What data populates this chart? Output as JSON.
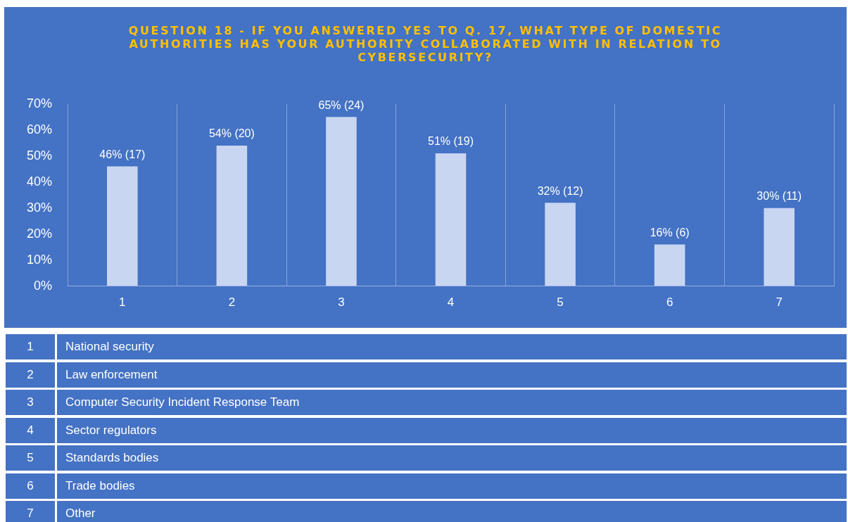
{
  "chart_data": {
    "type": "bar",
    "title": "QUESTION 18 - IF YOU ANSWERED YES TO Q. 17, WHAT TYPE OF DOMESTIC AUTHORITIES HAS YOUR AUTHORITY COLLABORATED WITH IN RELATION TO CYBERSECURITY?",
    "categories": [
      "1",
      "2",
      "3",
      "4",
      "5",
      "6",
      "7"
    ],
    "values": [
      46,
      54,
      65,
      51,
      32,
      16,
      30
    ],
    "value_labels": [
      "46% (17)",
      "54% (20)",
      "65% (24)",
      "51% (19)",
      "32% (12)",
      "16% (6)",
      "30% (11)"
    ],
    "color": "#c9d6f2",
    "ylim": [
      0,
      70
    ],
    "yticks": [
      {
        "value": 0,
        "label": "0%"
      },
      {
        "value": 10,
        "label": "10%"
      },
      {
        "value": 20,
        "label": "20%"
      },
      {
        "value": 30,
        "label": "30%"
      },
      {
        "value": 40,
        "label": "40%"
      },
      {
        "value": 50,
        "label": "50%"
      },
      {
        "value": 60,
        "label": "60%"
      },
      {
        "value": 70,
        "label": "70%"
      }
    ],
    "grid": "x",
    "legend": false,
    "annotations": [
      "National security",
      "Law enforcement",
      "Computer Security Incident Response Team",
      "Sector regulators",
      "Standards bodies",
      "Trade bodies",
      "Other"
    ]
  }
}
